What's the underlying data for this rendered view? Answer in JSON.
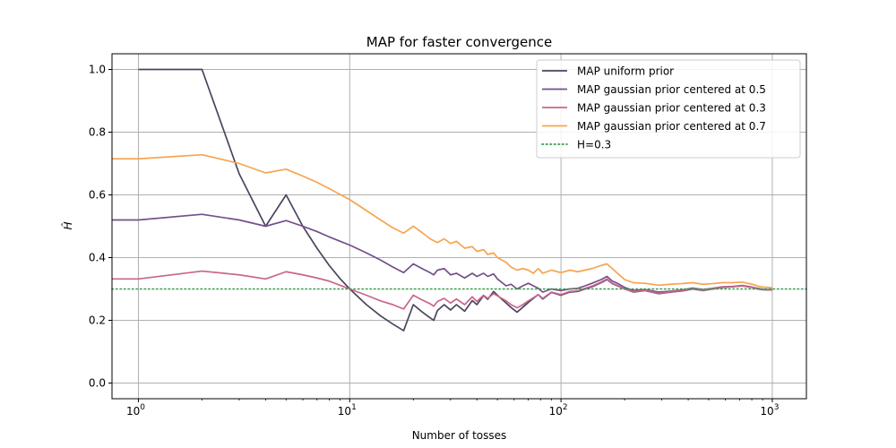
{
  "chart_data": {
    "type": "line",
    "title": "MAP for faster convergence",
    "xlabel": "Number of tosses",
    "ylabel": "Ĥ",
    "xscale": "log",
    "xlim": [
      0.75,
      1450
    ],
    "ylim": [
      -0.05,
      1.05
    ],
    "grid": true,
    "legend_position": "top-right",
    "x_ticks": [
      {
        "value": 1,
        "base": "10",
        "exp": "0"
      },
      {
        "value": 10,
        "base": "10",
        "exp": "1"
      },
      {
        "value": 100,
        "base": "10",
        "exp": "2"
      },
      {
        "value": 1000,
        "base": "10",
        "exp": "3"
      }
    ],
    "y_ticks": [
      {
        "value": 0.0,
        "label": "0.0"
      },
      {
        "value": 0.2,
        "label": "0.2"
      },
      {
        "value": 0.4,
        "label": "0.4"
      },
      {
        "value": 0.6,
        "label": "0.6"
      },
      {
        "value": 0.8,
        "label": "0.8"
      },
      {
        "value": 1.0,
        "label": "1.0"
      }
    ],
    "series": [
      {
        "name": "MAP uniform prior",
        "color": "#4a4560",
        "style": "solid",
        "points": [
          [
            1,
            1.0
          ],
          [
            2,
            1.0
          ],
          [
            3,
            0.667
          ],
          [
            4,
            0.5
          ],
          [
            5,
            0.6
          ],
          [
            6,
            0.5
          ],
          [
            7,
            0.43
          ],
          [
            8,
            0.375
          ],
          [
            9,
            0.333
          ],
          [
            10,
            0.3
          ],
          [
            12,
            0.25
          ],
          [
            14,
            0.214
          ],
          [
            16,
            0.188
          ],
          [
            18,
            0.167
          ],
          [
            20,
            0.25
          ],
          [
            22,
            0.227
          ],
          [
            24,
            0.208
          ],
          [
            25,
            0.2
          ],
          [
            26,
            0.231
          ],
          [
            28,
            0.25
          ],
          [
            30,
            0.233
          ],
          [
            32,
            0.25
          ],
          [
            35,
            0.229
          ],
          [
            38,
            0.263
          ],
          [
            40,
            0.25
          ],
          [
            43,
            0.279
          ],
          [
            45,
            0.267
          ],
          [
            48,
            0.292
          ],
          [
            50,
            0.28
          ],
          [
            55,
            0.255
          ],
          [
            58,
            0.241
          ],
          [
            62,
            0.226
          ],
          [
            66,
            0.242
          ],
          [
            70,
            0.257
          ],
          [
            74,
            0.27
          ],
          [
            78,
            0.282
          ],
          [
            82,
            0.268
          ],
          [
            90,
            0.289
          ],
          [
            100,
            0.28
          ],
          [
            110,
            0.29
          ],
          [
            120,
            0.292
          ],
          [
            130,
            0.3
          ],
          [
            140,
            0.307
          ],
          [
            155,
            0.32
          ],
          [
            165,
            0.33
          ],
          [
            175,
            0.317
          ],
          [
            185,
            0.31
          ],
          [
            200,
            0.3
          ],
          [
            220,
            0.29
          ],
          [
            250,
            0.295
          ],
          [
            290,
            0.285
          ],
          [
            330,
            0.29
          ],
          [
            370,
            0.293
          ],
          [
            420,
            0.3
          ],
          [
            470,
            0.295
          ],
          [
            520,
            0.3
          ],
          [
            580,
            0.305
          ],
          [
            650,
            0.307
          ],
          [
            720,
            0.31
          ],
          [
            800,
            0.305
          ],
          [
            880,
            0.298
          ],
          [
            950,
            0.297
          ],
          [
            1000,
            0.297
          ]
        ]
      },
      {
        "name": "MAP gaussian prior centered at 0.5",
        "color": "#754f8c",
        "style": "solid",
        "points": [
          [
            0.75,
            0.52
          ],
          [
            1,
            0.52
          ],
          [
            2,
            0.538
          ],
          [
            3,
            0.52
          ],
          [
            4,
            0.5
          ],
          [
            5,
            0.518
          ],
          [
            6,
            0.5
          ],
          [
            7,
            0.483
          ],
          [
            8,
            0.466
          ],
          [
            10,
            0.44
          ],
          [
            12,
            0.415
          ],
          [
            14,
            0.392
          ],
          [
            16,
            0.37
          ],
          [
            18,
            0.352
          ],
          [
            20,
            0.38
          ],
          [
            22,
            0.365
          ],
          [
            24,
            0.352
          ],
          [
            25,
            0.345
          ],
          [
            26,
            0.36
          ],
          [
            28,
            0.365
          ],
          [
            30,
            0.345
          ],
          [
            32,
            0.35
          ],
          [
            35,
            0.335
          ],
          [
            38,
            0.35
          ],
          [
            40,
            0.34
          ],
          [
            43,
            0.35
          ],
          [
            45,
            0.34
          ],
          [
            48,
            0.348
          ],
          [
            50,
            0.332
          ],
          [
            55,
            0.31
          ],
          [
            58,
            0.315
          ],
          [
            62,
            0.3
          ],
          [
            66,
            0.31
          ],
          [
            70,
            0.318
          ],
          [
            74,
            0.31
          ],
          [
            78,
            0.302
          ],
          [
            82,
            0.29
          ],
          [
            90,
            0.3
          ],
          [
            100,
            0.295
          ],
          [
            110,
            0.3
          ],
          [
            120,
            0.302
          ],
          [
            130,
            0.31
          ],
          [
            140,
            0.318
          ],
          [
            155,
            0.33
          ],
          [
            165,
            0.34
          ],
          [
            175,
            0.325
          ],
          [
            185,
            0.318
          ],
          [
            200,
            0.305
          ],
          [
            220,
            0.295
          ],
          [
            250,
            0.298
          ],
          [
            290,
            0.29
          ],
          [
            330,
            0.293
          ],
          [
            370,
            0.296
          ],
          [
            420,
            0.303
          ],
          [
            470,
            0.298
          ],
          [
            520,
            0.302
          ],
          [
            580,
            0.307
          ],
          [
            650,
            0.308
          ],
          [
            720,
            0.311
          ],
          [
            800,
            0.306
          ],
          [
            880,
            0.3
          ],
          [
            950,
            0.298
          ],
          [
            1000,
            0.298
          ]
        ]
      },
      {
        "name": "MAP gaussian prior centered at 0.3",
        "color": "#c8668a",
        "style": "solid",
        "points": [
          [
            0.75,
            0.332
          ],
          [
            1,
            0.332
          ],
          [
            2,
            0.357
          ],
          [
            3,
            0.345
          ],
          [
            4,
            0.332
          ],
          [
            5,
            0.355
          ],
          [
            6,
            0.345
          ],
          [
            7,
            0.335
          ],
          [
            8,
            0.325
          ],
          [
            10,
            0.3
          ],
          [
            12,
            0.28
          ],
          [
            14,
            0.262
          ],
          [
            16,
            0.25
          ],
          [
            18,
            0.236
          ],
          [
            20,
            0.28
          ],
          [
            22,
            0.265
          ],
          [
            24,
            0.253
          ],
          [
            25,
            0.245
          ],
          [
            26,
            0.26
          ],
          [
            28,
            0.27
          ],
          [
            30,
            0.255
          ],
          [
            32,
            0.268
          ],
          [
            35,
            0.25
          ],
          [
            38,
            0.275
          ],
          [
            40,
            0.26
          ],
          [
            43,
            0.28
          ],
          [
            45,
            0.27
          ],
          [
            48,
            0.285
          ],
          [
            50,
            0.278
          ],
          [
            55,
            0.262
          ],
          [
            58,
            0.25
          ],
          [
            62,
            0.24
          ],
          [
            66,
            0.25
          ],
          [
            70,
            0.262
          ],
          [
            74,
            0.272
          ],
          [
            78,
            0.282
          ],
          [
            82,
            0.27
          ],
          [
            90,
            0.29
          ],
          [
            100,
            0.282
          ],
          [
            110,
            0.292
          ],
          [
            120,
            0.294
          ],
          [
            130,
            0.302
          ],
          [
            140,
            0.309
          ],
          [
            155,
            0.322
          ],
          [
            165,
            0.332
          ],
          [
            175,
            0.318
          ],
          [
            185,
            0.311
          ],
          [
            200,
            0.3
          ],
          [
            220,
            0.291
          ],
          [
            250,
            0.296
          ],
          [
            290,
            0.286
          ],
          [
            330,
            0.291
          ],
          [
            370,
            0.294
          ],
          [
            420,
            0.301
          ],
          [
            470,
            0.296
          ],
          [
            520,
            0.301
          ],
          [
            580,
            0.306
          ],
          [
            650,
            0.307
          ],
          [
            720,
            0.31
          ],
          [
            800,
            0.305
          ],
          [
            880,
            0.298
          ],
          [
            950,
            0.297
          ],
          [
            1000,
            0.297
          ]
        ]
      },
      {
        "name": "MAP gaussian prior centered at 0.7",
        "color": "#f5a550",
        "style": "solid",
        "points": [
          [
            0.75,
            0.715
          ],
          [
            1,
            0.715
          ],
          [
            2,
            0.728
          ],
          [
            3,
            0.7
          ],
          [
            4,
            0.67
          ],
          [
            5,
            0.682
          ],
          [
            6,
            0.66
          ],
          [
            7,
            0.64
          ],
          [
            8,
            0.62
          ],
          [
            10,
            0.585
          ],
          [
            12,
            0.55
          ],
          [
            14,
            0.52
          ],
          [
            16,
            0.495
          ],
          [
            18,
            0.478
          ],
          [
            20,
            0.5
          ],
          [
            22,
            0.48
          ],
          [
            24,
            0.46
          ],
          [
            26,
            0.448
          ],
          [
            28,
            0.46
          ],
          [
            30,
            0.445
          ],
          [
            32,
            0.452
          ],
          [
            35,
            0.43
          ],
          [
            38,
            0.435
          ],
          [
            40,
            0.42
          ],
          [
            43,
            0.425
          ],
          [
            45,
            0.41
          ],
          [
            48,
            0.415
          ],
          [
            50,
            0.4
          ],
          [
            55,
            0.385
          ],
          [
            58,
            0.37
          ],
          [
            62,
            0.36
          ],
          [
            66,
            0.365
          ],
          [
            70,
            0.36
          ],
          [
            74,
            0.35
          ],
          [
            78,
            0.365
          ],
          [
            82,
            0.35
          ],
          [
            90,
            0.36
          ],
          [
            100,
            0.352
          ],
          [
            110,
            0.36
          ],
          [
            120,
            0.355
          ],
          [
            130,
            0.36
          ],
          [
            140,
            0.365
          ],
          [
            155,
            0.375
          ],
          [
            165,
            0.38
          ],
          [
            175,
            0.365
          ],
          [
            185,
            0.35
          ],
          [
            200,
            0.33
          ],
          [
            220,
            0.32
          ],
          [
            250,
            0.318
          ],
          [
            290,
            0.312
          ],
          [
            330,
            0.315
          ],
          [
            370,
            0.317
          ],
          [
            420,
            0.32
          ],
          [
            470,
            0.315
          ],
          [
            520,
            0.317
          ],
          [
            580,
            0.32
          ],
          [
            650,
            0.32
          ],
          [
            720,
            0.322
          ],
          [
            800,
            0.315
          ],
          [
            880,
            0.307
          ],
          [
            950,
            0.305
          ],
          [
            1000,
            0.304
          ]
        ]
      },
      {
        "name": "H=0.3",
        "color": "#3a9a4a",
        "style": "dotted",
        "hline": 0.3
      }
    ]
  }
}
